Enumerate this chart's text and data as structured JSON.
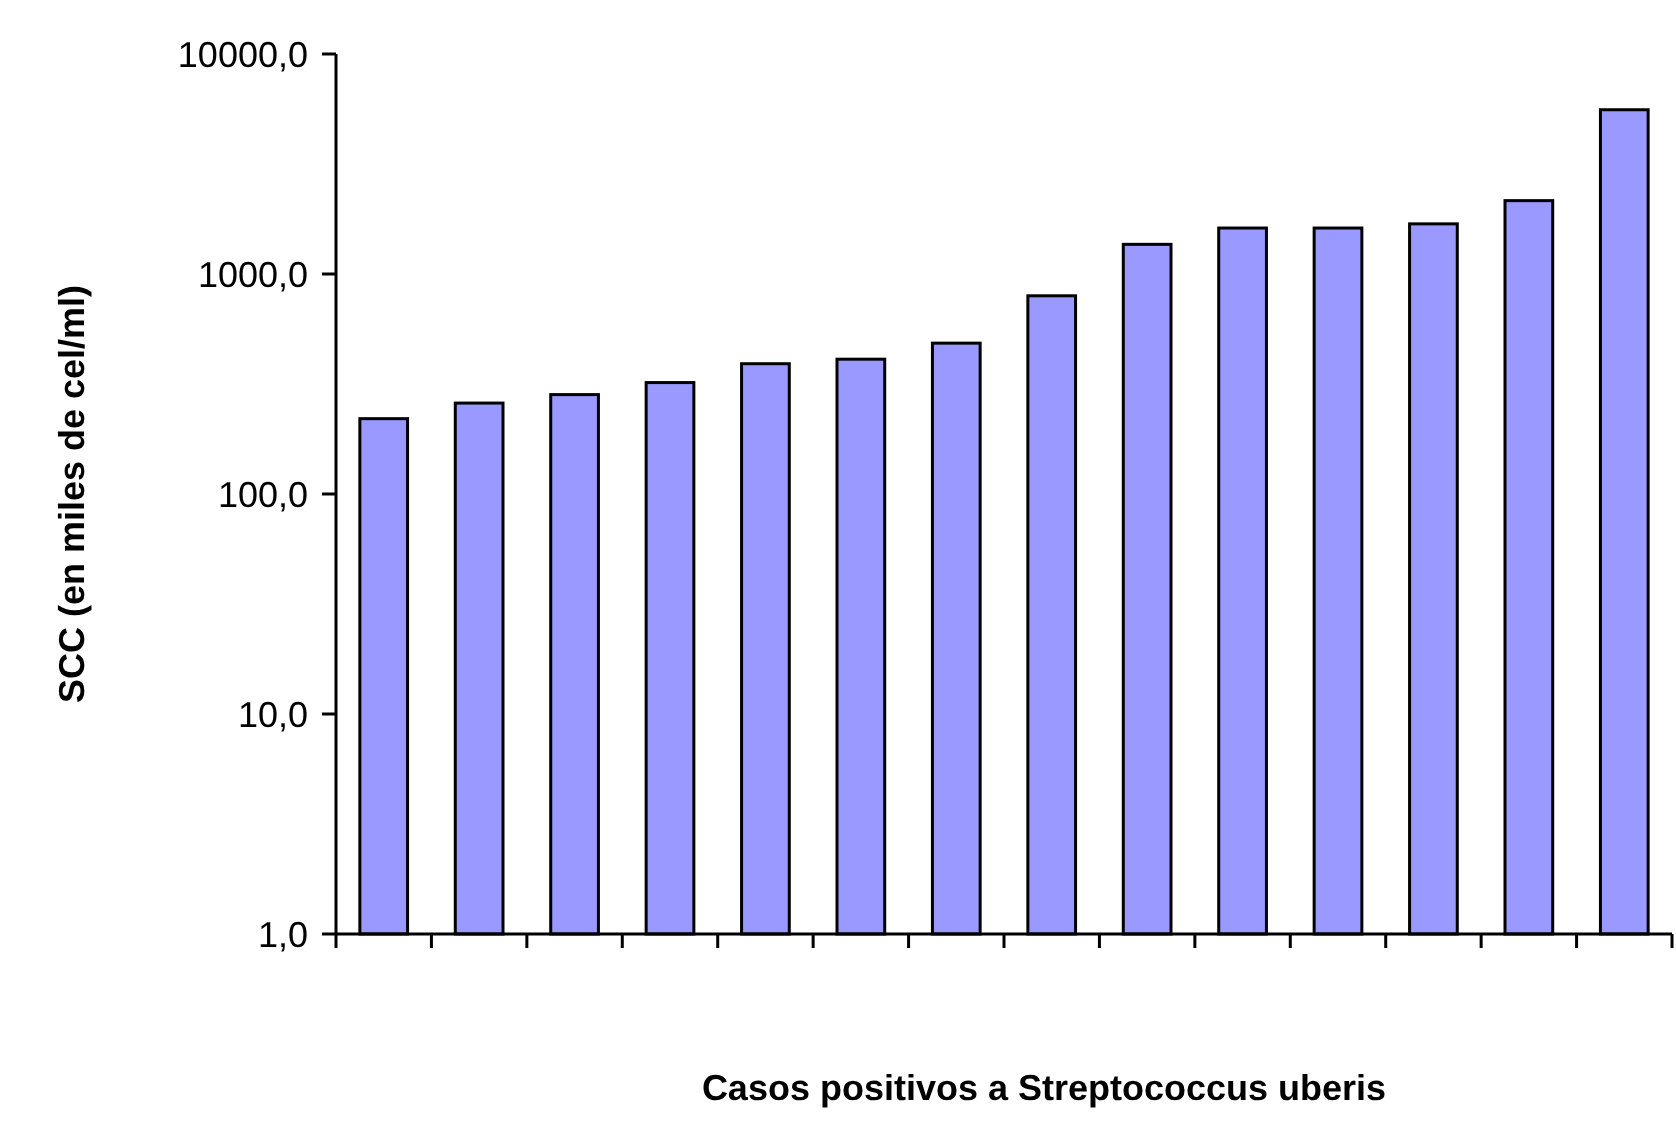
{
  "chart_data": {
    "type": "bar",
    "xlabel": "Casos positivos a Streptococcus uberis",
    "ylabel": "SCC (en miles de cel/ml)",
    "categories": [
      null,
      null,
      null,
      null,
      null,
      null,
      null,
      null,
      null,
      null,
      null,
      null,
      null,
      null
    ],
    "values": [
      220,
      259,
      283,
      321,
      391,
      410,
      485,
      796,
      1364,
      1618,
      1618,
      1690,
      2155,
      5580
    ],
    "color": "#9999ff",
    "log": true,
    "ylim": [
      1,
      10000
    ],
    "yticks": [
      {
        "value": 1,
        "label": "1,0"
      },
      {
        "value": 10,
        "label": "10,0"
      },
      {
        "value": 100,
        "label": "100,0"
      },
      {
        "value": 1000,
        "label": "1000,0"
      },
      {
        "value": 10000,
        "label": "10000,0"
      }
    ],
    "grid": false
  }
}
